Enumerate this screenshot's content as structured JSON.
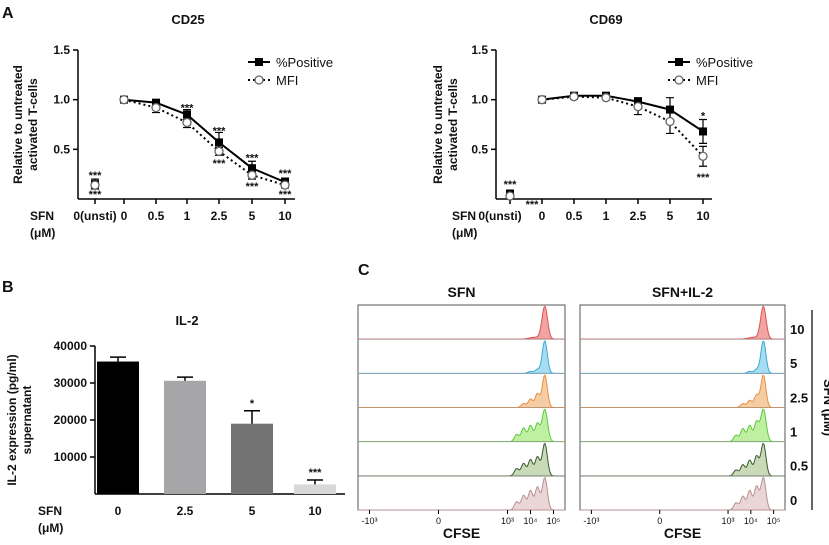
{
  "panels": {
    "A": "A",
    "B": "B",
    "C": "C"
  },
  "chart_data": [
    {
      "id": "cd25",
      "type": "line",
      "title": "CD25",
      "ylabel": "Relative to untreated activated T-cells",
      "ylabel_lines": [
        "Relative to untreated",
        "activated T-cells"
      ],
      "xlabel_prefix": "SFN",
      "xlabel_unit": "(μM)",
      "categories": [
        "0(unsti)",
        "0",
        "0.5",
        "1",
        "2.5",
        "5",
        "10"
      ],
      "ylim": [
        0,
        1.5
      ],
      "yticks": [
        "0.5",
        "1.0",
        "1.5"
      ],
      "ytick_values": [
        0.5,
        1.0,
        1.5
      ],
      "series": [
        {
          "name": "%Positive",
          "marker": "square",
          "line": "solid",
          "values": [
            0.15,
            1.0,
            0.97,
            0.85,
            0.57,
            0.31,
            0.17
          ],
          "errors": [
            0.05,
            0.02,
            0.03,
            0.05,
            0.1,
            0.07,
            0.04
          ]
        },
        {
          "name": "MFI",
          "marker": "circle-open",
          "line": "dotted",
          "values": [
            0.14,
            1.0,
            0.92,
            0.77,
            0.48,
            0.24,
            0.14
          ],
          "errors": [
            0.03,
            0.02,
            0.05,
            0.05,
            0.04,
            0.04,
            0.03
          ]
        }
      ],
      "annotations": [
        {
          "cat": 0,
          "y": 0.24,
          "text": "***"
        },
        {
          "cat": 0,
          "y": 0.05,
          "text": "***"
        },
        {
          "cat": 3,
          "y": 0.92,
          "text": "***"
        },
        {
          "cat": 4,
          "y": 0.69,
          "text": "***"
        },
        {
          "cat": 4,
          "y": 0.36,
          "text": "***"
        },
        {
          "cat": 5,
          "y": 0.42,
          "text": "***"
        },
        {
          "cat": 5,
          "y": 0.13,
          "text": "***"
        },
        {
          "cat": 6,
          "y": 0.26,
          "text": "***"
        },
        {
          "cat": 6,
          "y": 0.05,
          "text": "***"
        }
      ]
    },
    {
      "id": "cd69",
      "type": "line",
      "title": "CD69",
      "ylabel": "Relative to untreated activated T-cells",
      "ylabel_lines": [
        "Relative to untreated",
        "activated T-cells"
      ],
      "xlabel_prefix": "SFN",
      "xlabel_unit": "(μM)",
      "categories": [
        "0(unsti)",
        "0",
        "0.5",
        "1",
        "2.5",
        "5",
        "10"
      ],
      "ylim": [
        0,
        1.5
      ],
      "yticks": [
        "0.5",
        "1.0",
        "1.5"
      ],
      "ytick_values": [
        0.5,
        1.0,
        1.5
      ],
      "series": [
        {
          "name": "%Positive",
          "marker": "square",
          "line": "solid",
          "values": [
            0.05,
            1.0,
            1.04,
            1.04,
            0.98,
            0.9,
            0.68
          ],
          "errors": [
            0.04,
            0.02,
            0.02,
            0.02,
            0.04,
            0.12,
            0.12
          ]
        },
        {
          "name": "MFI",
          "marker": "circle-open",
          "line": "dotted",
          "values": [
            0.03,
            1.0,
            1.03,
            1.02,
            0.93,
            0.78,
            0.43
          ],
          "errors": [
            0.03,
            0.02,
            0.02,
            0.02,
            0.08,
            0.12,
            0.1
          ]
        }
      ],
      "annotations": [
        {
          "cat": 0,
          "y": 0.15,
          "text": "***"
        },
        {
          "cat": 0,
          "y": -0.05,
          "text": "***",
          "dx": 22
        },
        {
          "cat": 6,
          "y": 0.84,
          "text": "*"
        },
        {
          "cat": 6,
          "y": 0.22,
          "text": "***"
        }
      ]
    },
    {
      "id": "il2",
      "type": "bar",
      "title": "IL-2",
      "ylabel_lines": [
        "IL-2 expression (pg/ml)",
        "supernatant"
      ],
      "xlabel_prefix": "SFN",
      "xlabel_unit": "(μM)",
      "categories": [
        "0",
        "2.5",
        "5",
        "10"
      ],
      "values": [
        35800,
        30600,
        19000,
        2600
      ],
      "errors": [
        1200,
        1000,
        3500,
        1200
      ],
      "bar_colors": [
        "#000000",
        "#a6a6a8",
        "#737373",
        "#d8d8d8"
      ],
      "ylim": [
        0,
        40000
      ],
      "yticks": [
        "10000",
        "20000",
        "30000",
        "40000"
      ],
      "ytick_values": [
        10000,
        20000,
        30000,
        40000
      ],
      "annotations": [
        {
          "cat": 2,
          "text": "*"
        },
        {
          "cat": 3,
          "text": "***"
        }
      ]
    },
    {
      "id": "cfse",
      "type": "area",
      "panel_titles": [
        "SFN",
        "SFN+IL-2"
      ],
      "xlabel": "CFSE",
      "x_axis": {
        "range_log": [
          -3.5,
          5.5
        ],
        "ticks": [
          "-10³",
          "0",
          "10³",
          "10⁴",
          "10⁵"
        ],
        "tick_values": [
          -3,
          0,
          3,
          4,
          5
        ]
      },
      "side_label": "SFN (μM)",
      "rows": [
        {
          "label": "10",
          "fill": "#ef9a9a",
          "stroke": "#e05050",
          "peaks_left": [
            [
              4.62,
              1.0,
              0.12
            ],
            [
              4.2,
              0.06,
              0.25
            ]
          ],
          "peaks_right": [
            [
              4.55,
              1.0,
              0.12
            ],
            [
              4.15,
              0.06,
              0.25
            ]
          ]
        },
        {
          "label": "5",
          "fill": "#9fd9ef",
          "stroke": "#39a9d8",
          "peaks_left": [
            [
              4.62,
              1.0,
              0.11
            ],
            [
              4.3,
              0.12,
              0.1
            ],
            [
              4.0,
              0.06,
              0.1
            ]
          ],
          "peaks_right": [
            [
              4.55,
              1.0,
              0.11
            ],
            [
              4.25,
              0.12,
              0.1
            ],
            [
              3.95,
              0.06,
              0.1
            ]
          ]
        },
        {
          "label": "2.5",
          "fill": "#f5c79a",
          "stroke": "#e69040",
          "peaks_left": [
            [
              4.62,
              1.0,
              0.11
            ],
            [
              4.3,
              0.42,
              0.1
            ],
            [
              4.0,
              0.26,
              0.1
            ],
            [
              3.7,
              0.12,
              0.1
            ]
          ],
          "peaks_right": [
            [
              4.55,
              1.0,
              0.11
            ],
            [
              4.25,
              0.38,
              0.1
            ],
            [
              3.95,
              0.22,
              0.1
            ],
            [
              3.65,
              0.12,
              0.1
            ]
          ]
        },
        {
          "label": "1",
          "fill": "#b8ee98",
          "stroke": "#5cc83a",
          "peaks_left": [
            [
              4.62,
              1.0,
              0.12
            ],
            [
              4.3,
              0.55,
              0.1
            ],
            [
              4.0,
              0.5,
              0.1
            ],
            [
              3.7,
              0.42,
              0.1
            ],
            [
              3.4,
              0.22,
              0.1
            ]
          ],
          "peaks_right": [
            [
              4.55,
              1.0,
              0.12
            ],
            [
              4.25,
              0.6,
              0.1
            ],
            [
              3.95,
              0.5,
              0.1
            ],
            [
              3.65,
              0.4,
              0.1
            ],
            [
              3.35,
              0.2,
              0.1
            ]
          ]
        },
        {
          "label": "0.5",
          "fill": "#c2d6b0",
          "stroke": "#3a5a2a",
          "peaks_left": [
            [
              4.62,
              1.0,
              0.11
            ],
            [
              4.3,
              0.58,
              0.1
            ],
            [
              4.0,
              0.5,
              0.1
            ],
            [
              3.7,
              0.38,
              0.1
            ],
            [
              3.4,
              0.22,
              0.1
            ]
          ],
          "peaks_right": [
            [
              4.55,
              1.0,
              0.11
            ],
            [
              4.25,
              0.6,
              0.1
            ],
            [
              3.95,
              0.48,
              0.1
            ],
            [
              3.65,
              0.34,
              0.1
            ],
            [
              3.35,
              0.18,
              0.1
            ]
          ]
        },
        {
          "label": "0",
          "fill": "#e8d2d2",
          "stroke": "#b89090",
          "peaks_left": [
            [
              4.62,
              1.0,
              0.11
            ],
            [
              4.3,
              0.7,
              0.1
            ],
            [
              4.0,
              0.6,
              0.1
            ],
            [
              3.7,
              0.45,
              0.1
            ],
            [
              3.4,
              0.25,
              0.1
            ]
          ],
          "peaks_right": [
            [
              4.55,
              1.0,
              0.11
            ],
            [
              4.25,
              0.72,
              0.1
            ],
            [
              3.95,
              0.6,
              0.1
            ],
            [
              3.65,
              0.42,
              0.1
            ],
            [
              3.35,
              0.22,
              0.1
            ]
          ]
        }
      ]
    }
  ]
}
